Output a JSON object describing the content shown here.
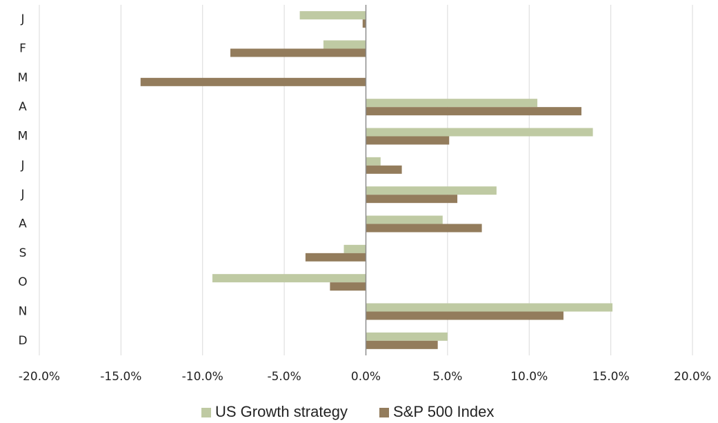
{
  "chart_data": {
    "type": "hbar",
    "categories": [
      "J",
      "F",
      "M",
      "A",
      "M",
      "J",
      "J",
      "A",
      "S",
      "O",
      "N",
      "D"
    ],
    "series": [
      {
        "name": "US Growth strategy",
        "color": "#bfcaa3",
        "values": [
          -4.05,
          -2.6,
          0,
          10.5,
          13.9,
          0.9,
          8.0,
          4.7,
          -1.35,
          -9.4,
          15.1,
          5.0
        ]
      },
      {
        "name": "S&P 500 Index",
        "color": "#937c5c",
        "values": [
          -0.2,
          -8.3,
          -13.8,
          13.2,
          5.1,
          2.2,
          5.6,
          7.1,
          -3.7,
          -2.2,
          12.1,
          4.4
        ]
      }
    ],
    "xlim": [
      -20,
      20
    ],
    "xticks": [
      {
        "value": -20,
        "label": "-20.0%"
      },
      {
        "value": -15,
        "label": "-15.0%"
      },
      {
        "value": -10,
        "label": "-10.0%"
      },
      {
        "value": -5,
        "label": "-5.0%"
      },
      {
        "value": 0,
        "label": "0.0%"
      },
      {
        "value": 5,
        "label": "5.0%"
      },
      {
        "value": 10,
        "label": "10.0%"
      },
      {
        "value": 15,
        "label": "15.0%"
      },
      {
        "value": 20,
        "label": "20.0%"
      }
    ],
    "grid": true,
    "legend": "bottom"
  }
}
